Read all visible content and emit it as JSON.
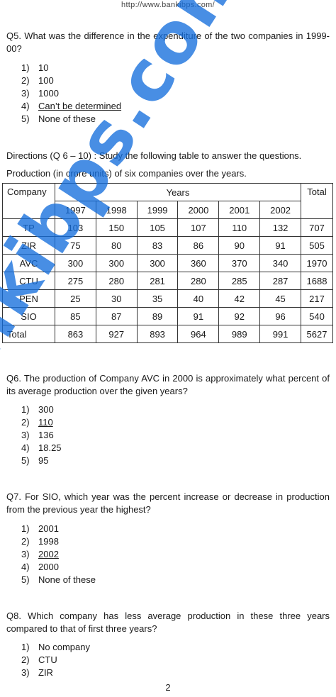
{
  "header_url": "http://www.bankibps.com/",
  "q5": {
    "text": "Q5. What was the difference in the expenditure of the two companies in 1999-00?",
    "options": [
      {
        "num": "1)",
        "text": "10"
      },
      {
        "num": "2)",
        "text": "100"
      },
      {
        "num": "3)",
        "text": "1000"
      },
      {
        "num": "4)",
        "text": "Can’t be determined"
      },
      {
        "num": "5)",
        "text": "None  of these"
      }
    ]
  },
  "directions": "Directions (Q 6 – 10) : Study the following table to answer the questions.",
  "table_caption": "Production (in crore units) of six companies over the years.",
  "table": {
    "company_header": "Company",
    "years_header": "Years",
    "total_header": "Total",
    "years": [
      "1997",
      "1998",
      "1999",
      "2000",
      "2001",
      "2002"
    ],
    "rows": [
      {
        "company": "TP",
        "values": [
          "103",
          "150",
          "105",
          "107",
          "110",
          "132"
        ],
        "total": "707"
      },
      {
        "company": "ZIR",
        "values": [
          "75",
          "80",
          "83",
          "86",
          "90",
          "91"
        ],
        "total": "505"
      },
      {
        "company": "AVC",
        "values": [
          "300",
          "300",
          "300",
          "360",
          "370",
          "340"
        ],
        "total": "1970"
      },
      {
        "company": "CTU",
        "values": [
          "275",
          "280",
          "281",
          "280",
          "285",
          "287"
        ],
        "total": "1688"
      },
      {
        "company": "PEN",
        "values": [
          "25",
          "30",
          "35",
          "40",
          "42",
          "45"
        ],
        "total": "217"
      },
      {
        "company": "SIO",
        "values": [
          "85",
          "87",
          "89",
          "91",
          "92",
          "96"
        ],
        "total": "540"
      }
    ],
    "total_row": {
      "label": "Total",
      "values": [
        "863",
        "927",
        "893",
        "964",
        "989",
        "991"
      ],
      "total": "5627"
    }
  },
  "q6": {
    "text": "Q6. The production of Company AVC in 2000 is approximately what percent of its average production over the given years?",
    "options": [
      {
        "num": "1)",
        "text": "300"
      },
      {
        "num": "2)",
        "text": "110"
      },
      {
        "num": "3)",
        "text": "136"
      },
      {
        "num": "4)",
        "text": "18.25"
      },
      {
        "num": "5)",
        "text": "95"
      }
    ]
  },
  "q7": {
    "text": "Q7. For SIO, which year was the percent increase or decrease in production from the previous year the highest?",
    "options": [
      {
        "num": "1)",
        "text": "2001"
      },
      {
        "num": "2)",
        "text": "1998"
      },
      {
        "num": "3)",
        "text": "2002"
      },
      {
        "num": "4)",
        "text": "2000"
      },
      {
        "num": "5)",
        "text": "None of these"
      }
    ]
  },
  "q8": {
    "text": "Q8. Which company has less average production in these three years compared to that of first three years?",
    "options": [
      {
        "num": "1)",
        "text": "No company"
      },
      {
        "num": "2)",
        "text": "CTU"
      },
      {
        "num": "3)",
        "text": "ZIR"
      }
    ]
  },
  "watermark": "bankibps.com",
  "page_number": "2"
}
